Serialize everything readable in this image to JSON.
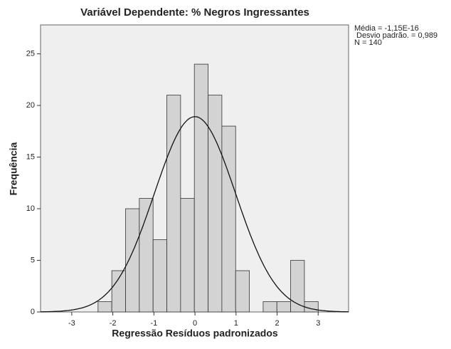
{
  "chart_data": {
    "type": "histogram",
    "title": "Variável Dependente: % Negros Ingressantes",
    "x_label": "Regressão Resíduos padronizados",
    "y_label": "Frequência",
    "bins": [
      -2.36,
      -2.025,
      -1.69,
      -1.355,
      -1.02,
      -0.685,
      -0.35,
      -0.015,
      0.32,
      0.655,
      0.99,
      1.325,
      1.66,
      1.995,
      2.33,
      2.665,
      3.0
    ],
    "values": [
      1,
      4,
      10,
      11,
      7,
      21,
      11,
      24,
      21,
      18,
      4,
      0,
      1,
      1,
      5,
      1
    ],
    "color": "#d3d3d3",
    "xlim": [
      -3.76,
      3.74
    ],
    "xticks": [
      -3,
      -2,
      -1,
      0,
      1,
      2,
      3
    ],
    "ylim": [
      0,
      27.8
    ],
    "yticks": [
      0,
      5,
      10,
      15,
      20,
      25
    ],
    "stats": [
      {
        "label": "Média = -1,15E-16",
        "value": -1.15e-16
      },
      {
        "label": "Desvio padrão. = 0,989",
        "value": 0.989
      },
      {
        "label": "N = 140",
        "value": 140
      }
    ],
    "normal_curve": true
  }
}
